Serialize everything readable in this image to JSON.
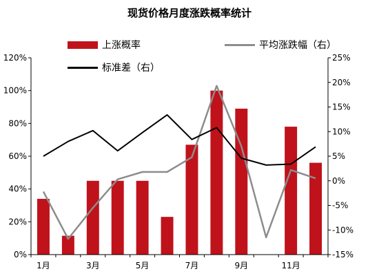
{
  "chart_data": {
    "type": "bar+line",
    "title": "现货价格月度涨跌概率统计",
    "categories": [
      "1月",
      "2月",
      "3月",
      "4月",
      "5月",
      "6月",
      "7月",
      "8月",
      "9月",
      "10月",
      "11月",
      "12月"
    ],
    "x_tick_labels": [
      "1月",
      "",
      "3月",
      "",
      "5月",
      "",
      "7月",
      "",
      "9月",
      "",
      "11月",
      ""
    ],
    "series": [
      {
        "name": "上涨概率",
        "kind": "bar",
        "axis": "left",
        "color": "#c0121b",
        "values": [
          34,
          11.5,
          45,
          45,
          45,
          23,
          67,
          100,
          89,
          0,
          78,
          56
        ]
      },
      {
        "name": "平均涨跌幅（右）",
        "kind": "line",
        "axis": "right",
        "color": "#8c8c8c",
        "values": [
          -2.2,
          -11.8,
          -5.5,
          0.3,
          1.8,
          1.8,
          4.8,
          19.3,
          7,
          -11.5,
          2.2,
          0.5
        ]
      },
      {
        "name": "标准差（右）",
        "kind": "line",
        "axis": "right",
        "color": "#000000",
        "values": [
          5,
          8,
          10.2,
          6.1,
          9.8,
          13.4,
          8.4,
          10.8,
          4.6,
          3.2,
          3.4,
          6.9
        ]
      }
    ],
    "left_axis": {
      "min": 0,
      "max": 120,
      "ticks": [
        0,
        20,
        40,
        60,
        80,
        100,
        120
      ],
      "labels": [
        "0%",
        "20%",
        "40%",
        "60%",
        "80%",
        "100%",
        "120%"
      ]
    },
    "right_axis": {
      "min": -15,
      "max": 25,
      "ticks": [
        -15,
        -10,
        -5,
        0,
        5,
        10,
        15,
        20,
        25
      ],
      "labels": [
        "-15%",
        "-10%",
        "-5%",
        "0%",
        "5%",
        "10%",
        "15%",
        "20%",
        "25%"
      ]
    },
    "grid": false,
    "legend_position": "top"
  }
}
